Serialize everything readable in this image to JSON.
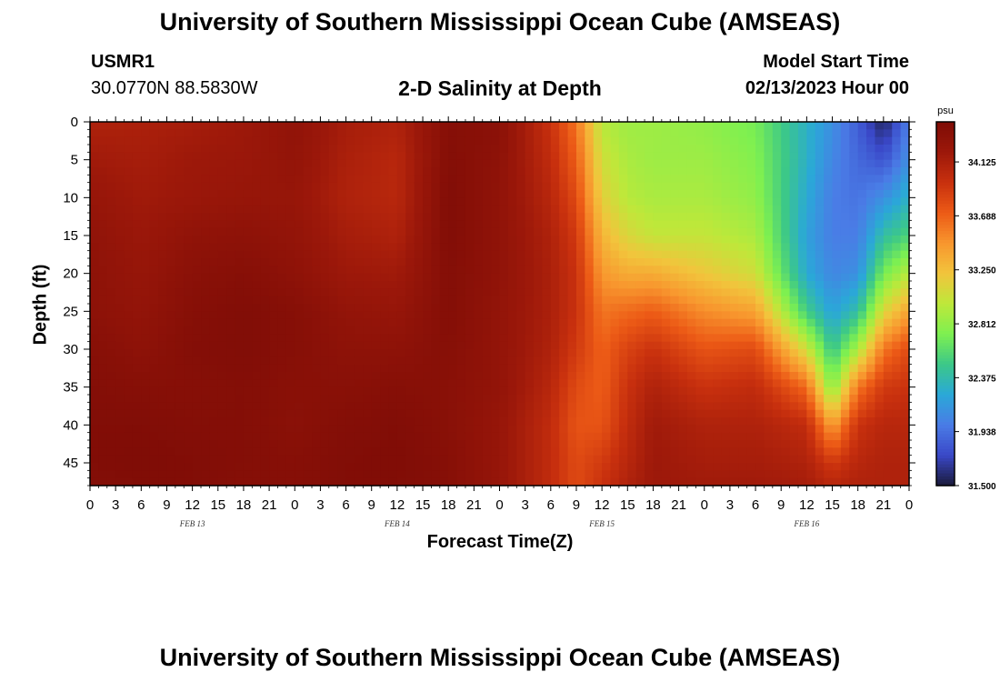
{
  "header": {
    "title": "University of Southern Mississippi Ocean Cube (AMSEAS)",
    "station_id": "USMR1",
    "station_location": "30.0770N  88.5830W",
    "plot_title": "2-D Salinity at Depth",
    "model_start_label": "Model Start Time",
    "model_start_value": "02/13/2023 Hour 00"
  },
  "footer": {
    "title": "University of Southern Mississippi Ocean Cube (AMSEAS)"
  },
  "colors": {
    "scale": [
      "#1a1a3a",
      "#3a48c8",
      "#4a7ce6",
      "#2aa8d8",
      "#3cc888",
      "#7ef050",
      "#bee83a",
      "#f2c43c",
      "#f8962e",
      "#ec5a16",
      "#c8300e",
      "#9c180a",
      "#7e0c06"
    ]
  },
  "chart_data": {
    "type": "heatmap",
    "title": "2-D Salinity at Depth",
    "xlabel": "Forecast Time(Z)",
    "ylabel": "Depth (ft)",
    "x_hours_range": [
      0,
      96
    ],
    "ylim": [
      0,
      48
    ],
    "y_ticks": [
      0,
      5,
      10,
      15,
      20,
      25,
      30,
      35,
      40,
      45
    ],
    "x_tick_labels": [
      "0",
      "3",
      "6",
      "9",
      "12",
      "15",
      "18",
      "21",
      "0",
      "3",
      "6",
      "9",
      "12",
      "15",
      "18",
      "21",
      "0",
      "3",
      "6",
      "9",
      "12",
      "15",
      "18",
      "21",
      "0",
      "3",
      "6",
      "9",
      "12",
      "15",
      "18",
      "21",
      "0"
    ],
    "date_labels": [
      {
        "label": "FEB 13",
        "hour": 12
      },
      {
        "label": "FEB 14",
        "hour": 36
      },
      {
        "label": "FEB 15",
        "hour": 60
      },
      {
        "label": "FEB 16",
        "hour": 84
      }
    ],
    "colorbar": {
      "unit": "psu",
      "min": 31.5,
      "max": 34.45,
      "ticks": [
        31.5,
        31.938,
        32.375,
        32.812,
        33.25,
        33.688,
        34.125
      ],
      "tick_labels": [
        "31.500",
        "31.938",
        "32.375",
        "32.812",
        "33.250",
        "33.688",
        "34.125"
      ]
    },
    "depth_levels_ft": [
      0,
      5,
      10,
      15,
      20,
      25,
      30,
      35,
      40,
      45,
      48
    ],
    "hour_columns": [
      0,
      6,
      12,
      18,
      24,
      30,
      36,
      42,
      48,
      54,
      57,
      60,
      63,
      66,
      72,
      78,
      84,
      87,
      90,
      93,
      96
    ],
    "salinity_psu": [
      [
        34.1,
        34.18,
        34.25,
        34.3,
        34.32,
        34.33,
        34.38,
        34.4,
        34.42,
        34.42,
        34.4
      ],
      [
        34.12,
        34.15,
        34.18,
        34.22,
        34.25,
        34.28,
        34.32,
        34.38,
        34.42,
        34.44,
        34.42
      ],
      [
        34.15,
        34.2,
        34.22,
        34.3,
        34.35,
        34.38,
        34.4,
        34.38,
        34.4,
        34.42,
        34.42
      ],
      [
        34.2,
        34.22,
        34.25,
        34.32,
        34.38,
        34.42,
        34.42,
        34.4,
        34.4,
        34.4,
        34.38
      ],
      [
        34.3,
        34.28,
        34.25,
        34.28,
        34.32,
        34.38,
        34.38,
        34.36,
        34.35,
        34.38,
        34.38
      ],
      [
        34.15,
        34.12,
        34.1,
        34.15,
        34.2,
        34.28,
        34.32,
        34.36,
        34.4,
        34.42,
        34.42
      ],
      [
        34.1,
        34.05,
        34.05,
        34.1,
        34.18,
        34.25,
        34.32,
        34.38,
        34.42,
        34.43,
        34.42
      ],
      [
        34.38,
        34.4,
        34.42,
        34.42,
        34.4,
        34.4,
        34.38,
        34.36,
        34.36,
        34.38,
        34.38
      ],
      [
        34.35,
        34.32,
        34.3,
        34.3,
        34.3,
        34.28,
        34.28,
        34.28,
        34.25,
        34.25,
        34.25
      ],
      [
        33.95,
        34.0,
        34.05,
        34.1,
        34.12,
        34.12,
        34.1,
        34.05,
        34.0,
        34.0,
        34.0
      ],
      [
        33.6,
        33.7,
        33.8,
        33.9,
        33.95,
        33.95,
        33.9,
        33.8,
        33.75,
        33.8,
        33.8
      ],
      [
        32.95,
        33.05,
        33.15,
        33.3,
        33.45,
        33.6,
        33.68,
        33.7,
        33.75,
        33.9,
        33.95
      ],
      [
        32.85,
        32.9,
        32.95,
        33.1,
        33.35,
        33.65,
        33.85,
        33.95,
        34.0,
        34.05,
        34.1
      ],
      [
        32.85,
        32.85,
        32.9,
        33.0,
        33.35,
        33.7,
        33.95,
        34.1,
        34.18,
        34.2,
        34.2
      ],
      [
        32.8,
        32.85,
        32.9,
        33.0,
        33.2,
        33.5,
        33.75,
        33.95,
        34.1,
        34.15,
        34.18
      ],
      [
        32.7,
        32.75,
        32.8,
        32.9,
        33.05,
        33.4,
        33.8,
        34.0,
        34.1,
        34.15,
        34.18
      ],
      [
        32.3,
        32.3,
        32.25,
        32.2,
        32.25,
        32.5,
        33.05,
        33.65,
        34.0,
        34.1,
        34.15
      ],
      [
        32.1,
        32.05,
        32.0,
        32.0,
        32.05,
        32.2,
        32.45,
        32.75,
        33.4,
        33.9,
        34.05
      ],
      [
        31.85,
        31.9,
        31.95,
        32.0,
        32.1,
        32.4,
        32.9,
        33.6,
        33.95,
        34.05,
        34.1
      ],
      [
        31.55,
        31.8,
        32.1,
        32.4,
        32.7,
        33.1,
        33.6,
        33.9,
        34.05,
        34.1,
        34.1
      ],
      [
        32.0,
        32.1,
        32.3,
        32.55,
        32.95,
        33.4,
        33.8,
        33.95,
        34.05,
        34.1,
        34.1
      ]
    ]
  }
}
